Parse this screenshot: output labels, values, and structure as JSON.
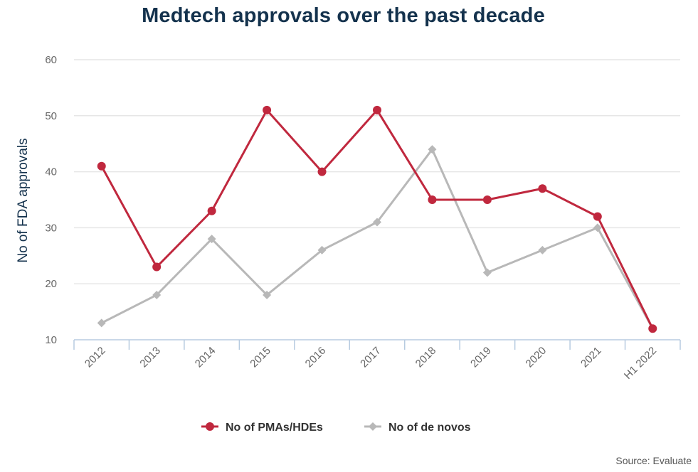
{
  "source": "Source: Evaluate",
  "colors": {
    "pma": "#c0283e",
    "denovo": "#b8b8b8",
    "grid": "#e6e6e6",
    "axis": "#b7cbe0"
  },
  "chart_data": {
    "type": "line",
    "title": "Medtech approvals over the past decade",
    "xlabel": "",
    "ylabel": "No of FDA approvals",
    "categories": [
      "2012",
      "2013",
      "2014",
      "2015",
      "2016",
      "2017",
      "2018",
      "2019",
      "2020",
      "2021",
      "H1 2022"
    ],
    "ylim": [
      10,
      60
    ],
    "yticks": [
      10,
      20,
      30,
      40,
      50,
      60
    ],
    "grid": true,
    "legend_position": "bottom-center",
    "series": [
      {
        "name": "No of PMAs/HDEs",
        "marker": "circle",
        "values": [
          41,
          23,
          33,
          51,
          40,
          51,
          35,
          35,
          37,
          32,
          12
        ]
      },
      {
        "name": "No of de novos",
        "marker": "diamond",
        "values": [
          13,
          18,
          28,
          18,
          26,
          31,
          44,
          22,
          26,
          30,
          12
        ]
      }
    ]
  }
}
